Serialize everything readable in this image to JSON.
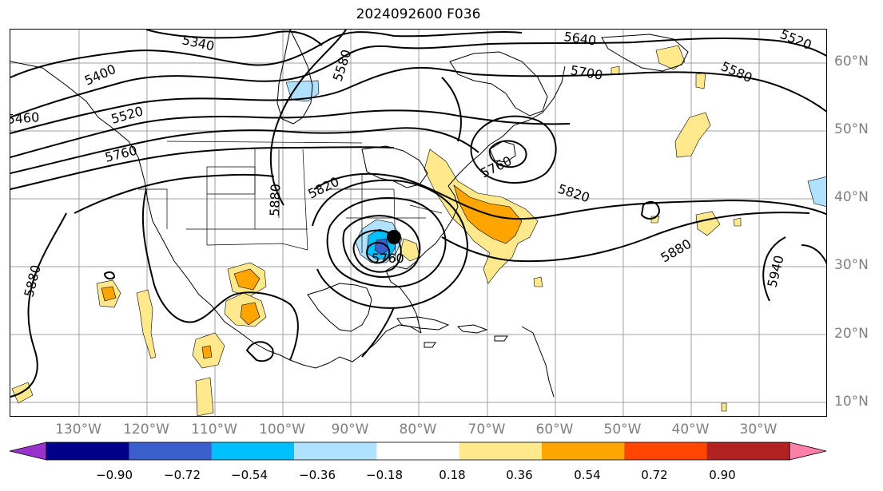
{
  "title": "2024092600 F036",
  "lat_labels": [
    "60°N",
    "50°N",
    "40°N",
    "30°N",
    "20°N",
    "10°N"
  ],
  "lon_labels": [
    "130°W",
    "120°W",
    "110°W",
    "100°W",
    "90°W",
    "80°W",
    "70°W",
    "60°W",
    "50°W",
    "40°W",
    "30°W"
  ],
  "contour_labels": [
    "5340",
    "5640",
    "5520",
    "5400",
    "5580",
    "5700",
    "5580",
    "5460",
    "5520",
    "5760",
    "5820",
    "5880",
    "5820",
    "5880",
    "5760",
    "5880",
    "5940",
    "5760"
  ],
  "colorbar": {
    "ticks": [
      "−0.90",
      "−0.72",
      "−0.54",
      "−0.36",
      "−0.18",
      "0.18",
      "0.36",
      "0.54",
      "0.72",
      "0.90"
    ],
    "colors": [
      "#9932cc",
      "#00008b",
      "#3a5fcd",
      "#00bfff",
      "#b0e2ff",
      "#ffffff",
      "#ffe98c",
      "#ffa500",
      "#ff4500",
      "#b22222",
      "#ff7fa8"
    ]
  },
  "shading_colors": {
    "light_yellow": "#ffe98c",
    "orange": "#ffa500",
    "light_blue": "#b0e2ff",
    "blue": "#00bfff",
    "mid_blue": "#3a5fcd"
  }
}
